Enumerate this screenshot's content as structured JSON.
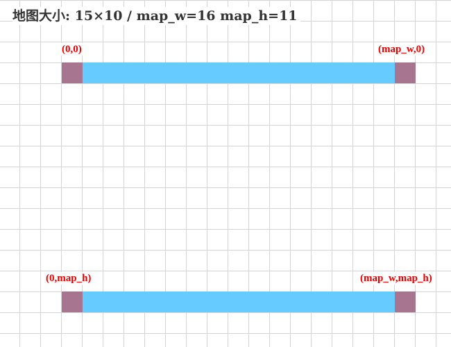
{
  "title": "地图大小: 15×10 / map_w=16 map_h=11",
  "colors": {
    "grid_line": "#d4d4d4",
    "bar_fill": "#66ccff",
    "corner_fill": "#a87590",
    "label_text": "#ee0000",
    "title_text": "#333333"
  },
  "labels": {
    "top_left": "(0,0)",
    "top_right": "(map_w,0)",
    "bottom_left": "(0,map_h)",
    "bottom_right": "(map_w,map_h)"
  }
}
